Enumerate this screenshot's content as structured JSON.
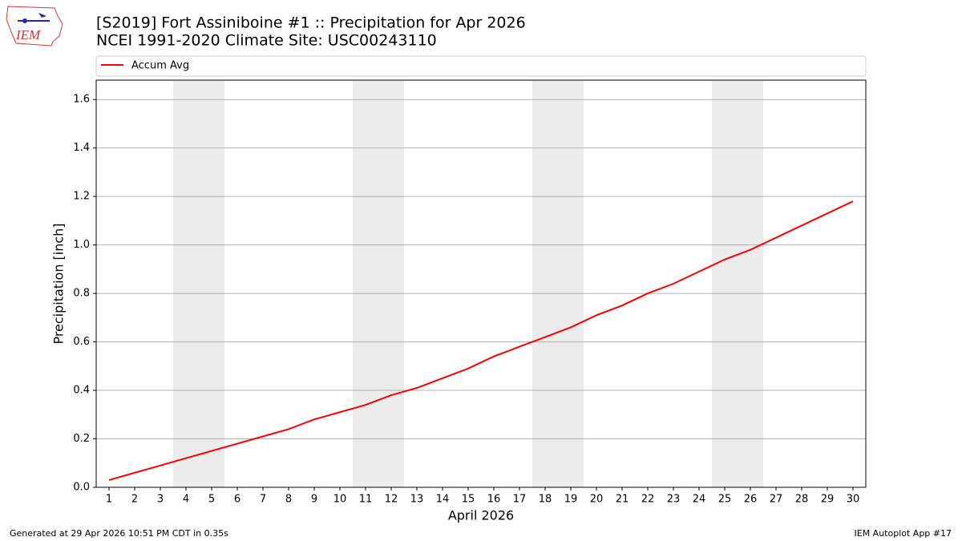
{
  "logo": "IEM",
  "footer_left": "Generated at 29 Apr 2026 10:51 PM CDT in 0.35s",
  "footer_right": "IEM Autoplot App #17",
  "chart_data": {
    "type": "line",
    "title": "[S2019] Fort Assiniboine #1 :: Precipitation for Apr 2026",
    "subtitle": "NCEI 1991-2020 Climate Site: USC00243110",
    "x_label": "April 2026",
    "y_label": "Precipitation [inch]",
    "x": [
      1,
      2,
      3,
      4,
      5,
      6,
      7,
      8,
      9,
      10,
      11,
      12,
      13,
      14,
      15,
      16,
      17,
      18,
      19,
      20,
      21,
      22,
      23,
      24,
      25,
      26,
      27,
      28,
      29,
      30
    ],
    "series": [
      {
        "name": "Accum Avg",
        "color": "#ff0000",
        "values": [
          0.03,
          0.06,
          0.09,
          0.12,
          0.15,
          0.18,
          0.21,
          0.24,
          0.28,
          0.31,
          0.34,
          0.38,
          0.41,
          0.45,
          0.49,
          0.54,
          0.58,
          0.62,
          0.66,
          0.71,
          0.75,
          0.8,
          0.84,
          0.89,
          0.94,
          0.98,
          1.03,
          1.08,
          1.13,
          1.18
        ]
      }
    ],
    "xlim": [
      0.5,
      30.5
    ],
    "xticks": [
      1,
      2,
      3,
      4,
      5,
      6,
      7,
      8,
      9,
      10,
      11,
      12,
      13,
      14,
      15,
      16,
      17,
      18,
      19,
      20,
      21,
      22,
      23,
      24,
      25,
      26,
      27,
      28,
      29,
      30
    ],
    "ylim": [
      0,
      1.68
    ],
    "yticks": [
      {
        "value": 0,
        "label": "0.0"
      },
      {
        "value": 0.2,
        "label": "0.2"
      },
      {
        "value": 0.4,
        "label": "0.4"
      },
      {
        "value": 0.6,
        "label": "0.6"
      },
      {
        "value": 0.8,
        "label": "0.8"
      },
      {
        "value": 1.0,
        "label": "1.0"
      },
      {
        "value": 1.2,
        "label": "1.2"
      },
      {
        "value": 1.4,
        "label": "1.4"
      },
      {
        "value": 1.6,
        "label": "1.6"
      }
    ],
    "grid": true,
    "shaded_spans": [
      [
        3.5,
        5.5
      ],
      [
        10.5,
        12.5
      ],
      [
        17.5,
        19.5
      ],
      [
        24.5,
        26.5
      ]
    ],
    "shade_color": "#ececec",
    "legend": "top"
  }
}
